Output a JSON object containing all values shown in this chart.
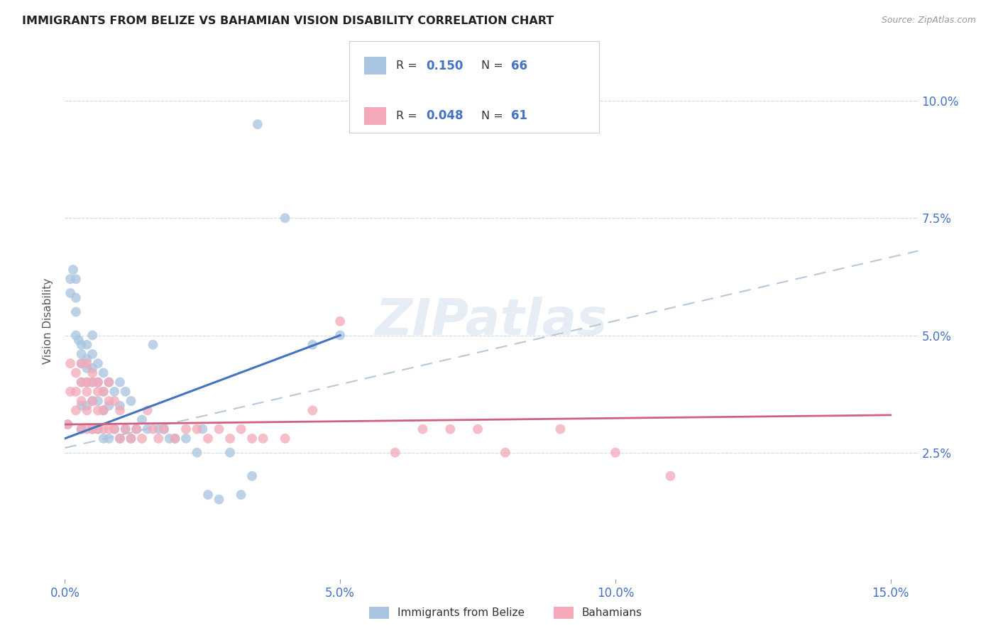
{
  "title": "IMMIGRANTS FROM BELIZE VS BAHAMIAN VISION DISABILITY CORRELATION CHART",
  "source": "Source: ZipAtlas.com",
  "ylabel": "Vision Disability",
  "xlabel_ticks": [
    "0.0%",
    "5.0%",
    "10.0%",
    "15.0%"
  ],
  "xlabel_vals": [
    0.0,
    0.05,
    0.1,
    0.15
  ],
  "ylabel_ticks": [
    "2.5%",
    "5.0%",
    "7.5%",
    "10.0%"
  ],
  "ylabel_vals": [
    0.025,
    0.05,
    0.075,
    0.1
  ],
  "xlim": [
    0.0,
    0.155
  ],
  "ylim": [
    -0.002,
    0.108
  ],
  "r_belize": 0.15,
  "n_belize": 66,
  "r_bahamian": 0.048,
  "n_bahamian": 61,
  "color_belize": "#a8c4e0",
  "color_bahamian": "#f4a8b8",
  "color_blue_text": "#4472c4",
  "trendline_belize_color": "#4472c4",
  "trendline_bahamian_color": "#d06080",
  "trendline_dashed_color": "#b8c8d8",
  "watermark": "ZIPatlas",
  "belize_x": [
    0.0005,
    0.001,
    0.001,
    0.0015,
    0.002,
    0.002,
    0.002,
    0.002,
    0.0025,
    0.003,
    0.003,
    0.003,
    0.003,
    0.003,
    0.003,
    0.004,
    0.004,
    0.004,
    0.004,
    0.004,
    0.005,
    0.005,
    0.005,
    0.005,
    0.005,
    0.005,
    0.006,
    0.006,
    0.006,
    0.006,
    0.007,
    0.007,
    0.007,
    0.007,
    0.008,
    0.008,
    0.008,
    0.009,
    0.009,
    0.01,
    0.01,
    0.01,
    0.011,
    0.011,
    0.012,
    0.012,
    0.013,
    0.014,
    0.015,
    0.016,
    0.017,
    0.018,
    0.019,
    0.02,
    0.022,
    0.024,
    0.025,
    0.026,
    0.028,
    0.03,
    0.032,
    0.034,
    0.035,
    0.04,
    0.045,
    0.05
  ],
  "belize_y": [
    0.031,
    0.062,
    0.059,
    0.064,
    0.062,
    0.058,
    0.055,
    0.05,
    0.049,
    0.048,
    0.046,
    0.044,
    0.04,
    0.035,
    0.03,
    0.048,
    0.045,
    0.043,
    0.04,
    0.035,
    0.05,
    0.046,
    0.043,
    0.04,
    0.036,
    0.03,
    0.044,
    0.04,
    0.036,
    0.03,
    0.042,
    0.038,
    0.034,
    0.028,
    0.04,
    0.035,
    0.028,
    0.038,
    0.03,
    0.04,
    0.035,
    0.028,
    0.038,
    0.03,
    0.036,
    0.028,
    0.03,
    0.032,
    0.03,
    0.048,
    0.03,
    0.03,
    0.028,
    0.028,
    0.028,
    0.025,
    0.03,
    0.016,
    0.015,
    0.025,
    0.016,
    0.02,
    0.095,
    0.075,
    0.048,
    0.05
  ],
  "bahamian_x": [
    0.0005,
    0.001,
    0.001,
    0.002,
    0.002,
    0.002,
    0.003,
    0.003,
    0.003,
    0.003,
    0.004,
    0.004,
    0.004,
    0.004,
    0.004,
    0.005,
    0.005,
    0.005,
    0.005,
    0.006,
    0.006,
    0.006,
    0.006,
    0.007,
    0.007,
    0.007,
    0.008,
    0.008,
    0.008,
    0.009,
    0.009,
    0.01,
    0.01,
    0.011,
    0.012,
    0.013,
    0.014,
    0.015,
    0.016,
    0.017,
    0.018,
    0.02,
    0.022,
    0.024,
    0.026,
    0.028,
    0.03,
    0.032,
    0.034,
    0.036,
    0.04,
    0.045,
    0.05,
    0.06,
    0.065,
    0.07,
    0.075,
    0.08,
    0.09,
    0.1,
    0.11
  ],
  "bahamian_y": [
    0.031,
    0.044,
    0.038,
    0.042,
    0.038,
    0.034,
    0.044,
    0.04,
    0.036,
    0.03,
    0.044,
    0.04,
    0.038,
    0.034,
    0.03,
    0.042,
    0.04,
    0.036,
    0.03,
    0.04,
    0.038,
    0.034,
    0.03,
    0.038,
    0.034,
    0.03,
    0.04,
    0.036,
    0.03,
    0.036,
    0.03,
    0.034,
    0.028,
    0.03,
    0.028,
    0.03,
    0.028,
    0.034,
    0.03,
    0.028,
    0.03,
    0.028,
    0.03,
    0.03,
    0.028,
    0.03,
    0.028,
    0.03,
    0.028,
    0.028,
    0.028,
    0.034,
    0.053,
    0.025,
    0.03,
    0.03,
    0.03,
    0.025,
    0.03,
    0.025,
    0.02
  ],
  "trendline_belize_x0": 0.0,
  "trendline_belize_y0": 0.028,
  "trendline_belize_x1": 0.05,
  "trendline_belize_y1": 0.05,
  "trendline_bahamian_x0": 0.0,
  "trendline_bahamian_y0": 0.031,
  "trendline_bahamian_x1": 0.15,
  "trendline_bahamian_y1": 0.033,
  "trendline_dashed_x0": 0.0,
  "trendline_dashed_y0": 0.026,
  "trendline_dashed_x1": 0.155,
  "trendline_dashed_y1": 0.068
}
